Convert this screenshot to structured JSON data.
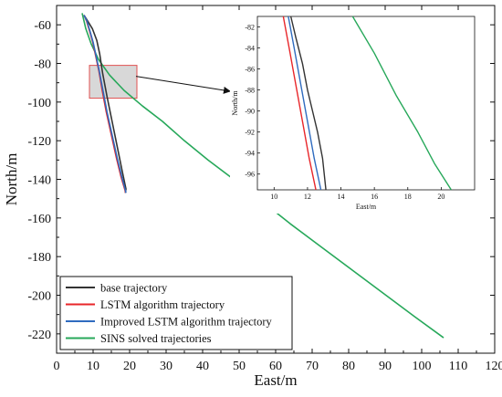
{
  "chart_data": [
    {
      "type": "line",
      "title": "",
      "xlabel": "East/m",
      "ylabel": "North/m",
      "xlim": [
        0,
        120
      ],
      "ylim": [
        -230,
        -50
      ],
      "xticks": [
        0,
        10,
        20,
        30,
        40,
        50,
        60,
        70,
        80,
        90,
        100,
        110,
        120
      ],
      "yticks": [
        -60,
        -80,
        -100,
        -120,
        -140,
        -160,
        -180,
        -200,
        -220
      ],
      "legend_position": "bottom-left",
      "highlight_box": {
        "x": [
          9,
          22
        ],
        "y": [
          -98,
          -81
        ]
      },
      "series": [
        {
          "name": "base trajectory",
          "color": "#333333",
          "x": [
            7.5,
            8.5,
            9.8,
            11.0,
            11.8,
            12.6,
            13.8,
            15.2,
            16.6,
            18.0,
            19.0,
            18.8
          ],
          "y": [
            -55,
            -58,
            -62,
            -68,
            -75,
            -85,
            -97,
            -110,
            -123,
            -136,
            -145,
            -147
          ]
        },
        {
          "name": "LSTM algorithm trajectory",
          "color": "#e8262a",
          "x": [
            7.5,
            8.2,
            9.0,
            9.9,
            10.7,
            11.6,
            12.5,
            13.6,
            15.0,
            16.4,
            17.7,
            18.8,
            18.9
          ],
          "y": [
            -55,
            -58,
            -63,
            -69,
            -76,
            -84,
            -94,
            -105,
            -117,
            -129,
            -139,
            -146,
            -147
          ]
        },
        {
          "name": "Improved LSTM algorithm trajectory",
          "color": "#2f6bbf",
          "x": [
            7.5,
            8.3,
            9.1,
            10.0,
            10.8,
            11.7,
            12.7,
            13.8,
            15.2,
            16.6,
            17.9,
            18.9,
            19.0
          ],
          "y": [
            -55,
            -58,
            -63,
            -69,
            -76,
            -84,
            -94,
            -105,
            -117,
            -129,
            -139,
            -146,
            -147
          ]
        },
        {
          "name": "SINS solved trajectories",
          "color": "#27a85a",
          "x": [
            7.0,
            8.0,
            9.5,
            11.5,
            14.5,
            18.5,
            23.5,
            29.0,
            35.0,
            41.5,
            48.5,
            56.0,
            64.0,
            72.5,
            81.0,
            89.5,
            98.0,
            106.0
          ],
          "y": [
            -54,
            -62,
            -70,
            -78,
            -86,
            -94,
            -102,
            -110,
            -120,
            -130,
            -140,
            -151,
            -163,
            -175,
            -187,
            -199,
            -211,
            -222
          ]
        }
      ]
    },
    {
      "type": "line",
      "title": "",
      "xlabel": "East/m",
      "ylabel": "North/m",
      "xlim": [
        9,
        22
      ],
      "ylim": [
        -97.5,
        -81
      ],
      "xticks": [
        10,
        12,
        14,
        16,
        18,
        20
      ],
      "yticks": [
        -82,
        -84,
        -86,
        -88,
        -90,
        -92,
        -94,
        -96
      ],
      "series": [
        {
          "name": "base trajectory",
          "color": "#333333",
          "x": [
            11.0,
            11.3,
            11.7,
            12.0,
            12.3,
            12.6,
            12.9,
            13.1
          ],
          "y": [
            -81,
            -83,
            -85.5,
            -88,
            -90,
            -92,
            -94.5,
            -97.5
          ]
        },
        {
          "name": "LSTM algorithm trajectory",
          "color": "#e8262a",
          "x": [
            10.55,
            10.9,
            11.3,
            11.7,
            12.1,
            12.5
          ],
          "y": [
            -81,
            -84,
            -87.5,
            -91,
            -94.5,
            -97.5
          ]
        },
        {
          "name": "Improved LSTM algorithm trajectory",
          "color": "#2f6bbf",
          "x": [
            10.85,
            11.2,
            11.6,
            12.0,
            12.4,
            12.8
          ],
          "y": [
            -81,
            -84,
            -87.5,
            -91,
            -94.5,
            -97.5
          ]
        },
        {
          "name": "SINS solved trajectories",
          "color": "#27a85a",
          "x": [
            14.7,
            16.0,
            17.3,
            18.6,
            19.6,
            20.6
          ],
          "y": [
            -81,
            -84.5,
            -88.5,
            -92,
            -95,
            -97.5
          ]
        }
      ]
    }
  ]
}
